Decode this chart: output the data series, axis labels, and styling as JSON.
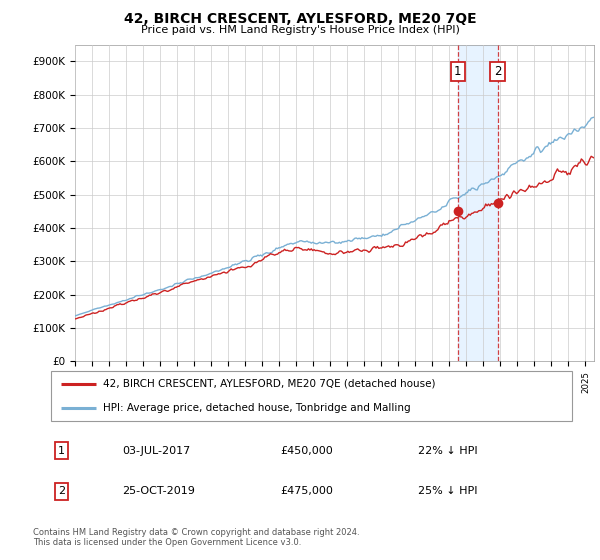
{
  "title": "42, BIRCH CRESCENT, AYLESFORD, ME20 7QE",
  "subtitle": "Price paid vs. HM Land Registry's House Price Index (HPI)",
  "ylabel_ticks": [
    "£0",
    "£100K",
    "£200K",
    "£300K",
    "£400K",
    "£500K",
    "£600K",
    "£700K",
    "£800K",
    "£900K"
  ],
  "ytick_values": [
    0,
    100000,
    200000,
    300000,
    400000,
    500000,
    600000,
    700000,
    800000,
    900000
  ],
  "ylim": [
    0,
    950000
  ],
  "xlim_start": 1995,
  "xlim_end": 2025.5,
  "sale1_year": 2017.5,
  "sale1_price": 450000,
  "sale2_year": 2019.83,
  "sale2_price": 475000,
  "sale1_date": "03-JUL-2017",
  "sale1_amount": "£450,000",
  "sale1_hpi": "22% ↓ HPI",
  "sale2_date": "25-OCT-2019",
  "sale2_amount": "£475,000",
  "sale2_hpi": "25% ↓ HPI",
  "hpi_color": "#7ab0d4",
  "price_color": "#cc2222",
  "shade_color": "#ddeeff",
  "dashed_color": "#cc2222",
  "legend_label_price": "42, BIRCH CRESCENT, AYLESFORD, ME20 7QE (detached house)",
  "legend_label_hpi": "HPI: Average price, detached house, Tonbridge and Malling",
  "footnote": "Contains HM Land Registry data © Crown copyright and database right 2024.\nThis data is licensed under the Open Government Licence v3.0.",
  "bg_color": "#ffffff",
  "grid_color": "#cccccc",
  "title_fontsize": 10,
  "subtitle_fontsize": 8,
  "tick_fontsize": 7.5,
  "legend_fontsize": 7.5,
  "table_fontsize": 8,
  "footnote_fontsize": 6
}
